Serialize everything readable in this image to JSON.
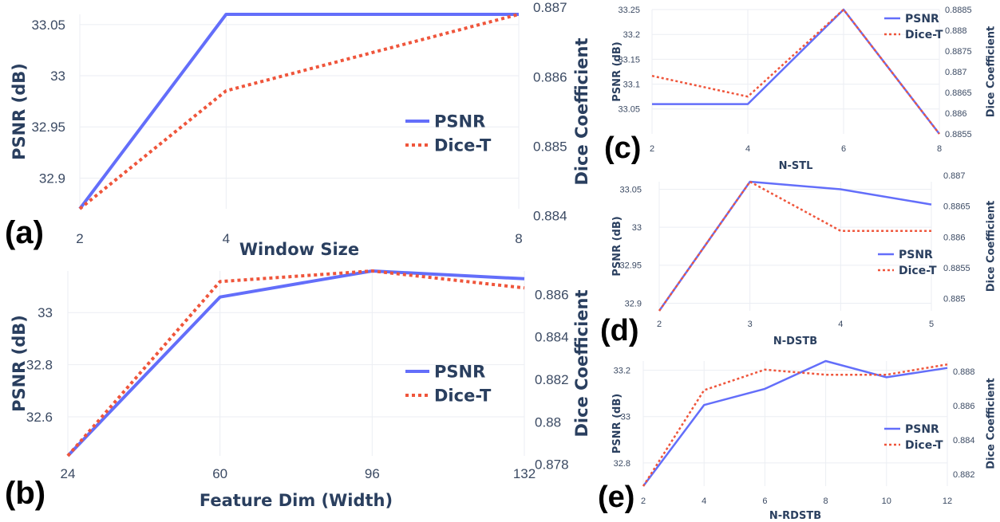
{
  "colors": {
    "psnr": "#636efa",
    "dice": "#ef553b",
    "grid": "#ebeef3",
    "axis_text": "#2a3f5f"
  },
  "chart_data": [
    {
      "id": "a",
      "type": "line",
      "panel_label": "(a)",
      "xlabel": "Window Size",
      "ylabel": "PSNR (dB)",
      "y2label": "Dice Coefficient",
      "x": [
        2,
        4,
        8
      ],
      "xticks": [
        "2",
        "4",
        "8"
      ],
      "ylim": [
        32.87,
        33.06
      ],
      "yticks": [
        "32.9",
        "32.95",
        "33",
        "33.05"
      ],
      "y2lim": [
        0.8841,
        0.8869
      ],
      "y2ticks": [
        "0.884",
        "0.885",
        "0.886",
        "0.887"
      ],
      "grid": true,
      "legend_position": "right",
      "series": [
        {
          "name": "PSNR",
          "axis": "left",
          "style": "solid",
          "values": [
            32.87,
            33.06,
            33.06
          ]
        },
        {
          "name": "Dice-T",
          "axis": "right",
          "style": "dotted",
          "values": [
            0.8841,
            0.8858,
            0.8869
          ]
        }
      ]
    },
    {
      "id": "b",
      "type": "line",
      "panel_label": "(b)",
      "xlabel": "Feature Dim (Width)",
      "ylabel": "PSNR (dB)",
      "y2label": "Dice Coefficient",
      "x": [
        24,
        60,
        96,
        132
      ],
      "xticks": [
        "24",
        "60",
        "96",
        "132"
      ],
      "ylim": [
        32.45,
        33.16
      ],
      "yticks": [
        "32.6",
        "32.8",
        "33"
      ],
      "y2lim": [
        0.8784,
        0.8871
      ],
      "y2ticks": [
        "0.878",
        "0.88",
        "0.882",
        "0.884",
        "0.886"
      ],
      "grid": true,
      "legend_position": "right",
      "series": [
        {
          "name": "PSNR",
          "axis": "left",
          "style": "solid",
          "values": [
            32.45,
            33.06,
            33.16,
            33.13
          ]
        },
        {
          "name": "Dice-T",
          "axis": "right",
          "style": "dotted",
          "values": [
            0.8784,
            0.8866,
            0.8871,
            0.8863
          ]
        }
      ]
    },
    {
      "id": "c",
      "type": "line",
      "panel_label": "(c)",
      "xlabel": "N-STL",
      "ylabel": "PSNR (dB)",
      "y2label": "Dice Coefficient",
      "x": [
        2,
        4,
        6,
        8
      ],
      "xticks": [
        "2",
        "4",
        "6",
        "8"
      ],
      "ylim": [
        33.0,
        33.25
      ],
      "yticks": [
        "33.05",
        "33.1",
        "33.15",
        "33.2",
        "33.25"
      ],
      "y2lim": [
        0.8855,
        0.8885
      ],
      "y2ticks": [
        "0.8855",
        "0.886",
        "0.8865",
        "0.887",
        "0.8875",
        "0.888",
        "0.8885"
      ],
      "grid": true,
      "legend_position": "top-right",
      "series": [
        {
          "name": "PSNR",
          "axis": "left",
          "style": "solid",
          "values": [
            33.06,
            33.06,
            33.25,
            33.0
          ]
        },
        {
          "name": "Dice-T",
          "axis": "right",
          "style": "dotted",
          "values": [
            0.8869,
            0.8864,
            0.8885,
            0.8855
          ]
        }
      ]
    },
    {
      "id": "d",
      "type": "line",
      "panel_label": "(d)",
      "xlabel": "N-DSTB",
      "ylabel": "PSNR (dB)",
      "y2label": "Dice Coefficient",
      "x": [
        2,
        3,
        4,
        5
      ],
      "xticks": [
        "2",
        "3",
        "4",
        "5"
      ],
      "ylim": [
        32.89,
        33.06
      ],
      "yticks": [
        "32.9",
        "32.95",
        "33",
        "33.05"
      ],
      "y2lim": [
        0.8848,
        0.8869
      ],
      "y2ticks": [
        "0.885",
        "0.8855",
        "0.886",
        "0.8865",
        "0.887"
      ],
      "grid": true,
      "legend_position": "right",
      "series": [
        {
          "name": "PSNR",
          "axis": "left",
          "style": "solid",
          "values": [
            32.89,
            33.06,
            33.05,
            33.03
          ]
        },
        {
          "name": "Dice-T",
          "axis": "right",
          "style": "dotted",
          "values": [
            0.8848,
            0.8869,
            0.8861,
            0.8861
          ]
        }
      ]
    },
    {
      "id": "e",
      "type": "line",
      "panel_label": "(e)",
      "xlabel": "N-RDSTB",
      "ylabel": "PSNR (dB)",
      "y2label": "Dice Coefficient",
      "x": [
        2,
        4,
        6,
        8,
        10,
        12
      ],
      "xticks": [
        "2",
        "4",
        "6",
        "8",
        "10",
        "12"
      ],
      "ylim": [
        32.7,
        33.24
      ],
      "yticks": [
        "32.8",
        "33",
        "33.2"
      ],
      "y2lim": [
        0.8813,
        0.8886
      ],
      "y2ticks": [
        "0.882",
        "0.884",
        "0.886",
        "0.888"
      ],
      "grid": true,
      "legend_position": "right",
      "series": [
        {
          "name": "PSNR",
          "axis": "left",
          "style": "solid",
          "values": [
            32.7,
            33.05,
            33.12,
            33.24,
            33.17,
            33.21
          ]
        },
        {
          "name": "Dice-T",
          "axis": "right",
          "style": "dotted",
          "values": [
            0.8813,
            0.8869,
            0.8881,
            0.8878,
            0.8878,
            0.8884
          ]
        }
      ]
    }
  ]
}
